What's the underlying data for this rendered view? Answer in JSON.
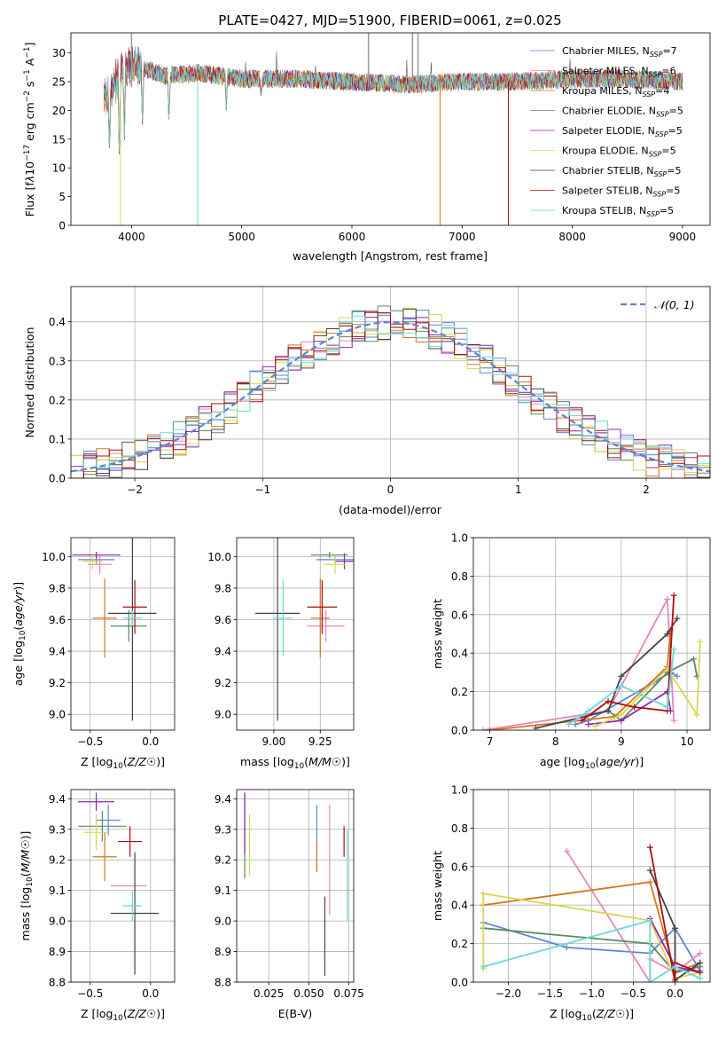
{
  "title": "PLATE=0427, MJD=51900, FIBERID=0061, z=0.025",
  "legend": [
    {
      "label": "Chabrier MILES, N_SSP=7",
      "color": "#5b86d6"
    },
    {
      "label": "Salpeter MILES, N_SSP=6",
      "color": "#e985be"
    },
    {
      "label": "Kroupa MILES, N_SSP=4",
      "color": "#d4761b"
    },
    {
      "label": "Chabrier ELODIE, N_SSP=5",
      "color": "#5c8a60"
    },
    {
      "label": "Salpeter ELODIE, N_SSP=5",
      "color": "#8e24b0"
    },
    {
      "label": "Kroupa ELODIE, N_SSP=5",
      "color": "#d8d84c"
    },
    {
      "label": "Chabrier STELIB, N_SSP=5",
      "color": "#444444"
    },
    {
      "label": "Salpeter STELIB, N_SSP=5",
      "color": "#b00b0b"
    },
    {
      "label": "Kroupa STELIB, N_SSP=5",
      "color": "#6ad8d8"
    }
  ],
  "chart_data": [
    {
      "id": "spectrum",
      "type": "line",
      "xlabel": "wavelength [Angstrom, rest frame]",
      "ylabel": "Flux [f_λ10^-17 erg cm^-2 s^-1 A^-1]",
      "xlim": [
        3450,
        9250
      ],
      "ylim": [
        0,
        33.5
      ],
      "xticks": [
        4000,
        5000,
        6000,
        7000,
        8000,
        9000
      ],
      "yticks": [
        0,
        5,
        10,
        15,
        20,
        25,
        30
      ],
      "continuum": [
        [
          3750,
          22
        ],
        [
          3950,
          28
        ],
        [
          4100,
          27.5
        ],
        [
          4300,
          26
        ],
        [
          4600,
          26.5
        ],
        [
          5000,
          25.5
        ],
        [
          5500,
          25.5
        ],
        [
          6000,
          25
        ],
        [
          6500,
          24.5
        ],
        [
          7000,
          25
        ],
        [
          7500,
          25
        ],
        [
          8000,
          25.5
        ],
        [
          8500,
          25.5
        ],
        [
          9000,
          25
        ]
      ],
      "absorption_dips": [
        [
          3800,
          12
        ],
        [
          3890,
          10
        ],
        [
          3935,
          14
        ],
        [
          4100,
          16
        ],
        [
          4340,
          17
        ],
        [
          4860,
          20
        ],
        [
          5175,
          22
        ]
      ],
      "artifacts": [
        [
          3900,
          0
        ],
        [
          4600,
          0
        ],
        [
          6800,
          0
        ],
        [
          7420,
          0
        ]
      ]
    },
    {
      "id": "residuals",
      "type": "histogram",
      "xlabel": "(data-model)/error",
      "ylabel": "Normed distribution",
      "xlim": [
        -2.5,
        2.5
      ],
      "ylim": [
        0,
        0.49
      ],
      "xticks": [
        -2,
        -1,
        0,
        1,
        2
      ],
      "yticks": [
        0.0,
        0.1,
        0.2,
        0.3,
        0.4
      ],
      "reference_label": "𝒩(0, 1)",
      "bin_width": 0.1
    },
    {
      "id": "age-vs-Z",
      "type": "errorbar",
      "xlabel": "Z [log10(Z/Z☉)]",
      "ylabel": "age  [log10(age/yr)]",
      "xlim": [
        -0.66,
        0.2
      ],
      "ylim": [
        8.9,
        10.12
      ],
      "xticks": [
        -0.5,
        0.0
      ],
      "yticks": [
        9.0,
        9.2,
        9.4,
        9.6,
        9.8,
        10.0
      ],
      "points": [
        {
          "x": -0.45,
          "xerr": 0.15,
          "y": 9.98,
          "yerr": 0.03
        },
        {
          "x": -0.42,
          "xerr": 0.1,
          "y": 9.95,
          "yerr": 0.06
        },
        {
          "x": -0.38,
          "xerr": 0.1,
          "y": 9.61,
          "yerr": 0.25
        },
        {
          "x": -0.18,
          "xerr": 0.15,
          "y": 9.56,
          "yerr": 0.1
        },
        {
          "x": -0.45,
          "xerr": 0.2,
          "y": 10.01,
          "yerr": 0.02
        },
        {
          "x": -0.48,
          "xerr": 0.08,
          "y": 9.97,
          "yerr": 0.05
        },
        {
          "x": -0.15,
          "xerr": 0.2,
          "y": 9.64,
          "yerr": 0.68
        },
        {
          "x": -0.13,
          "xerr": 0.1,
          "y": 9.68,
          "yerr": 0.17
        },
        {
          "x": -0.15,
          "xerr": 0.08,
          "y": 9.61,
          "yerr": 0.05
        }
      ]
    },
    {
      "id": "age-vs-mass",
      "type": "errorbar",
      "xlabel": "mass [log10(M/M☉)]",
      "ylabel": "",
      "xlim": [
        8.8,
        9.43
      ],
      "ylim": [
        8.9,
        10.12
      ],
      "xticks": [
        9.0,
        9.25
      ],
      "yticks": [
        9.0,
        9.2,
        9.4,
        9.6,
        9.8,
        10.0
      ],
      "points": [
        {
          "x": 9.33,
          "xerr": 0.1,
          "y": 9.98,
          "yerr": 0.03
        },
        {
          "x": 9.28,
          "xerr": 0.1,
          "y": 9.56,
          "yerr": 0.1
        },
        {
          "x": 9.25,
          "xerr": 0.05,
          "y": 9.61,
          "yerr": 0.25
        },
        {
          "x": 9.3,
          "xerr": 0.1,
          "y": 10.01,
          "yerr": 0.02
        },
        {
          "x": 9.38,
          "xerr": 0.05,
          "y": 9.97,
          "yerr": 0.05
        },
        {
          "x": 9.33,
          "xerr": 0.06,
          "y": 9.95,
          "yerr": 0.06
        },
        {
          "x": 9.02,
          "xerr": 0.12,
          "y": 9.64,
          "yerr": 0.68
        },
        {
          "x": 9.26,
          "xerr": 0.08,
          "y": 9.68,
          "yerr": 0.17
        },
        {
          "x": 9.05,
          "xerr": 0.05,
          "y": 9.61,
          "yerr": 0.24
        }
      ]
    },
    {
      "id": "weight-vs-age",
      "type": "line",
      "xlabel": "age  [log10(age/yr)]",
      "ylabel": "mass weight",
      "xlim": [
        6.75,
        10.35
      ],
      "ylim": [
        0,
        1.0
      ],
      "xticks": [
        7,
        8,
        9,
        10
      ],
      "yticks": [
        0.0,
        0.2,
        0.4,
        0.6,
        0.8,
        1.0
      ],
      "series": [
        {
          "x": [
            8.3,
            8.5,
            9.5,
            9.75,
            9.85
          ],
          "y": [
            0.03,
            0.05,
            0.25,
            0.3,
            0.28
          ]
        },
        {
          "x": [
            6.9,
            8.8,
            9.7,
            9.8
          ],
          "y": [
            0.0,
            0.1,
            0.68,
            0.05
          ]
        },
        {
          "x": [
            7.0,
            8.9,
            9.7,
            9.75
          ],
          "y": [
            0.0,
            0.07,
            0.33,
            0.52
          ]
        },
        {
          "x": [
            8.8,
            9.0,
            9.7,
            10.1,
            10.15
          ],
          "y": [
            0.1,
            0.05,
            0.3,
            0.37,
            0.28
          ]
        },
        {
          "x": [
            8.5,
            9.0,
            9.7,
            9.75
          ],
          "y": [
            0.03,
            0.05,
            0.2,
            0.1
          ]
        },
        {
          "x": [
            8.6,
            9.0,
            9.7,
            10.15,
            10.2
          ],
          "y": [
            0.02,
            0.08,
            0.32,
            0.08,
            0.46
          ]
        },
        {
          "x": [
            7.7,
            8.8,
            9.0,
            9.7,
            9.85
          ],
          "y": [
            0.01,
            0.1,
            0.28,
            0.5,
            0.58
          ]
        },
        {
          "x": [
            8.4,
            8.8,
            9.2,
            9.7,
            9.8
          ],
          "y": [
            0.05,
            0.15,
            0.12,
            0.1,
            0.7
          ]
        },
        {
          "x": [
            8.2,
            8.5,
            9.0,
            9.7,
            9.8
          ],
          "y": [
            0.03,
            0.1,
            0.23,
            0.12,
            0.42
          ]
        }
      ]
    },
    {
      "id": "mass-vs-Z",
      "type": "errorbar",
      "xlabel": "Z [log10(Z/Z☉)]",
      "ylabel": "mass [log10(M/M☉)]",
      "xlim": [
        -0.66,
        0.2
      ],
      "ylim": [
        8.8,
        9.43
      ],
      "xticks": [
        -0.5,
        0.0
      ],
      "yticks": [
        8.8,
        8.9,
        9.0,
        9.1,
        9.2,
        9.3,
        9.4
      ],
      "points": [
        {
          "x": -0.35,
          "xerr": 0.1,
          "y": 9.33,
          "yerr": 0.05
        },
        {
          "x": -0.18,
          "xerr": 0.15,
          "y": 9.115,
          "yerr": 0.0
        },
        {
          "x": -0.38,
          "xerr": 0.1,
          "y": 9.21,
          "yerr": 0.08
        },
        {
          "x": -0.4,
          "xerr": 0.2,
          "y": 9.31,
          "yerr": 0.05
        },
        {
          "x": -0.45,
          "xerr": 0.15,
          "y": 9.39,
          "yerr": 0.03
        },
        {
          "x": -0.45,
          "xerr": 0.1,
          "y": 9.29,
          "yerr": 0.06
        },
        {
          "x": -0.13,
          "xerr": 0.2,
          "y": 9.025,
          "yerr": 0.2
        },
        {
          "x": -0.17,
          "xerr": 0.1,
          "y": 9.26,
          "yerr": 0.05
        },
        {
          "x": -0.15,
          "xerr": 0.08,
          "y": 9.05,
          "yerr": 0.05
        }
      ]
    },
    {
      "id": "mass-vs-EBV",
      "type": "errorbar",
      "xlabel": "E(B-V)",
      "ylabel": "",
      "xlim": [
        0.005,
        0.078
      ],
      "ylim": [
        8.8,
        9.43
      ],
      "xticks": [
        0.025,
        0.05,
        0.075
      ],
      "yticks": [
        8.8,
        8.9,
        9.0,
        9.1,
        9.2,
        9.3,
        9.4
      ],
      "points": [
        {
          "x": 0.055,
          "y": 9.27,
          "yerr": 0.11
        },
        {
          "x": 0.063,
          "y": 9.2,
          "yerr": 0.18
        },
        {
          "x": 0.055,
          "y": 9.21,
          "yerr": 0.05
        },
        {
          "x": 0.01,
          "y": 9.28,
          "yerr": 0.14
        },
        {
          "x": 0.01,
          "y": 9.32,
          "yerr": 0.1
        },
        {
          "x": 0.013,
          "y": 9.25,
          "yerr": 0.1
        },
        {
          "x": 0.06,
          "y": 8.95,
          "yerr": 0.13
        },
        {
          "x": 0.072,
          "y": 9.26,
          "yerr": 0.05
        },
        {
          "x": 0.074,
          "y": 9.15,
          "yerr": 0.15
        }
      ]
    },
    {
      "id": "weight-vs-Z",
      "type": "line",
      "xlabel": "Z [log10(Z/Z☉)]",
      "ylabel": "mass weight",
      "xlim": [
        -2.42,
        0.42
      ],
      "ylim": [
        0,
        1.0
      ],
      "xticks": [
        -2.0,
        -1.5,
        -1.0,
        -0.5,
        0.0
      ],
      "yticks": [
        0.0,
        0.2,
        0.4,
        0.6,
        0.8,
        1.0
      ],
      "series": [
        {
          "x": [
            -2.3,
            -1.3,
            -0.3,
            0.0,
            0.3
          ],
          "y": [
            0.31,
            0.18,
            0.15,
            0.28,
            0.06
          ]
        },
        {
          "x": [
            -1.3,
            -0.3,
            -0.3,
            0.0,
            0.3
          ],
          "y": [
            0.68,
            0.0,
            0.12,
            0.05,
            0.15
          ]
        },
        {
          "x": [
            -2.3,
            -0.3,
            0.0,
            0.3
          ],
          "y": [
            0.4,
            0.52,
            0.05,
            0.1
          ]
        },
        {
          "x": [
            -2.3,
            -0.3,
            0.0,
            0.3
          ],
          "y": [
            0.28,
            0.2,
            0.05,
            0.08
          ]
        },
        {
          "x": [
            -0.3,
            0.0,
            0.3
          ],
          "y": [
            0.33,
            0.08,
            0.05
          ]
        },
        {
          "x": [
            -2.3,
            -2.3,
            -0.3,
            0.0,
            0.3
          ],
          "y": [
            0.07,
            0.46,
            0.32,
            0.02,
            0.05
          ]
        },
        {
          "x": [
            -0.3,
            0.0,
            0.0,
            0.3
          ],
          "y": [
            0.58,
            0.28,
            0.01,
            0.1
          ]
        },
        {
          "x": [
            -0.3,
            0.0,
            0.0,
            0.3
          ],
          "y": [
            0.7,
            0.0,
            0.1,
            0.05
          ]
        },
        {
          "x": [
            -2.3,
            -0.3,
            -0.3,
            0.0,
            0.3
          ],
          "y": [
            0.08,
            0.32,
            0.0,
            0.08,
            0.02
          ]
        }
      ]
    }
  ]
}
